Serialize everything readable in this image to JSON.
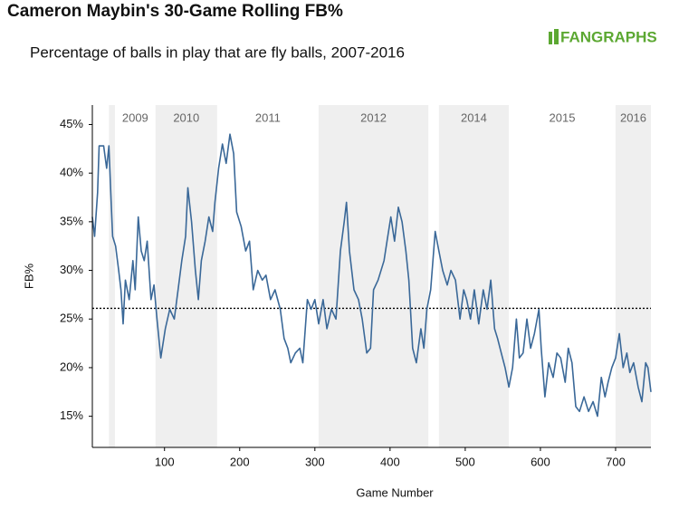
{
  "chart_data": {
    "type": "line",
    "title": "Cameron Maybin's 30-Game Rolling FB%",
    "subtitle": "Percentage of balls in play that are fly balls, 2007-2016",
    "logo": "FANGRAPHS",
    "xlabel": "Game Number",
    "ylabel": "FB%",
    "color": "#3a6898",
    "x": [
      4,
      7,
      11,
      13,
      19,
      23,
      26,
      29,
      31,
      35,
      39,
      42,
      45,
      48,
      53,
      58,
      61,
      65,
      69,
      73,
      77,
      82,
      86,
      90,
      95,
      101,
      107,
      113,
      118,
      123,
      128,
      131,
      136,
      141,
      145,
      149,
      154,
      159,
      164,
      167,
      172,
      177,
      182,
      187,
      192,
      196,
      202,
      208,
      213,
      218,
      224,
      230,
      235,
      241,
      247,
      254,
      259,
      264,
      268,
      274,
      280,
      284,
      290,
      295,
      300,
      305,
      311,
      316,
      322,
      328,
      334,
      339,
      342,
      346,
      352,
      358,
      363,
      369,
      374,
      378,
      384,
      392,
      396,
      401,
      406,
      411,
      416,
      421,
      425,
      430,
      435,
      441,
      445,
      449,
      454,
      460,
      465,
      470,
      476,
      481,
      487,
      493,
      498,
      502,
      507,
      512,
      518,
      524,
      529,
      534,
      539,
      543,
      548,
      553,
      558,
      563,
      568,
      572,
      577,
      582,
      587,
      592,
      598,
      601,
      606,
      611,
      617,
      622,
      627,
      633,
      637,
      642,
      647,
      652,
      658,
      664,
      670,
      676,
      681,
      686,
      690,
      695,
      700,
      705,
      710,
      715,
      719,
      724,
      730,
      735,
      740,
      743,
      747
    ],
    "values": [
      35.5,
      33.5,
      38,
      42.8,
      42.8,
      40.5,
      42.8,
      37,
      33.5,
      32.5,
      30,
      28,
      24.5,
      29,
      27,
      31,
      28,
      35.5,
      32,
      31,
      33,
      27,
      28.5,
      25,
      21,
      24,
      26,
      25,
      28,
      31,
      33.5,
      38.5,
      35,
      30,
      27,
      31,
      33,
      35.5,
      34,
      37,
      40.5,
      43,
      41,
      44,
      42,
      36,
      34.5,
      32,
      33,
      28,
      30,
      29,
      29.5,
      27,
      28,
      26,
      23,
      22,
      20.5,
      21.5,
      22,
      20.5,
      27,
      26,
      27,
      24.5,
      27,
      24,
      26,
      25,
      32,
      35,
      37,
      32,
      28,
      27,
      25,
      21.5,
      22,
      28,
      29,
      31,
      33,
      35.5,
      33,
      36.5,
      35,
      32,
      29,
      22,
      20.5,
      24,
      22,
      26,
      28,
      34,
      32,
      30,
      28.5,
      30,
      29,
      25,
      28,
      27,
      25,
      28,
      24.5,
      28,
      26,
      29,
      24,
      23,
      21.5,
      20,
      18,
      20,
      25,
      21,
      21.5,
      25,
      22,
      23.5,
      26,
      22,
      17,
      20.5,
      19,
      21.5,
      21,
      18.5,
      22,
      20.5,
      16,
      15.5,
      17,
      15.5,
      16.5,
      15,
      19,
      17,
      18.5,
      20,
      21,
      23.5,
      20,
      21.5,
      19.5,
      20.5,
      18,
      16.5,
      20.5,
      20,
      17.5
    ],
    "reference_line": 26.1,
    "seasons": [
      {
        "label": null,
        "start": 26,
        "end": 34,
        "shaded": true
      },
      {
        "label": "2009",
        "start": 34,
        "end": 88,
        "shaded": false
      },
      {
        "label": "2010",
        "start": 88,
        "end": 170,
        "shaded": true
      },
      {
        "label": "2011",
        "start": 170,
        "end": 305,
        "shaded": false
      },
      {
        "label": "2012",
        "start": 305,
        "end": 451,
        "shaded": true
      },
      {
        "label": null,
        "start": 451,
        "end": 465,
        "shaded": false
      },
      {
        "label": "2014",
        "start": 465,
        "end": 558,
        "shaded": true
      },
      {
        "label": "2015",
        "start": 558,
        "end": 700,
        "shaded": false
      },
      {
        "label": "2016",
        "start": 700,
        "end": 747,
        "shaded": true
      }
    ],
    "xlim": [
      4,
      747
    ],
    "ylim": [
      11.8,
      47
    ],
    "xticks": [
      100,
      200,
      300,
      400,
      500,
      600,
      700
    ],
    "yticks": [
      {
        "value": 15,
        "label": "15%"
      },
      {
        "value": 20,
        "label": "20%"
      },
      {
        "value": 25,
        "label": "25%"
      },
      {
        "value": 30,
        "label": "30%"
      },
      {
        "value": 35,
        "label": "35%"
      },
      {
        "value": 40,
        "label": "40%"
      },
      {
        "value": 45,
        "label": "45%"
      }
    ]
  }
}
